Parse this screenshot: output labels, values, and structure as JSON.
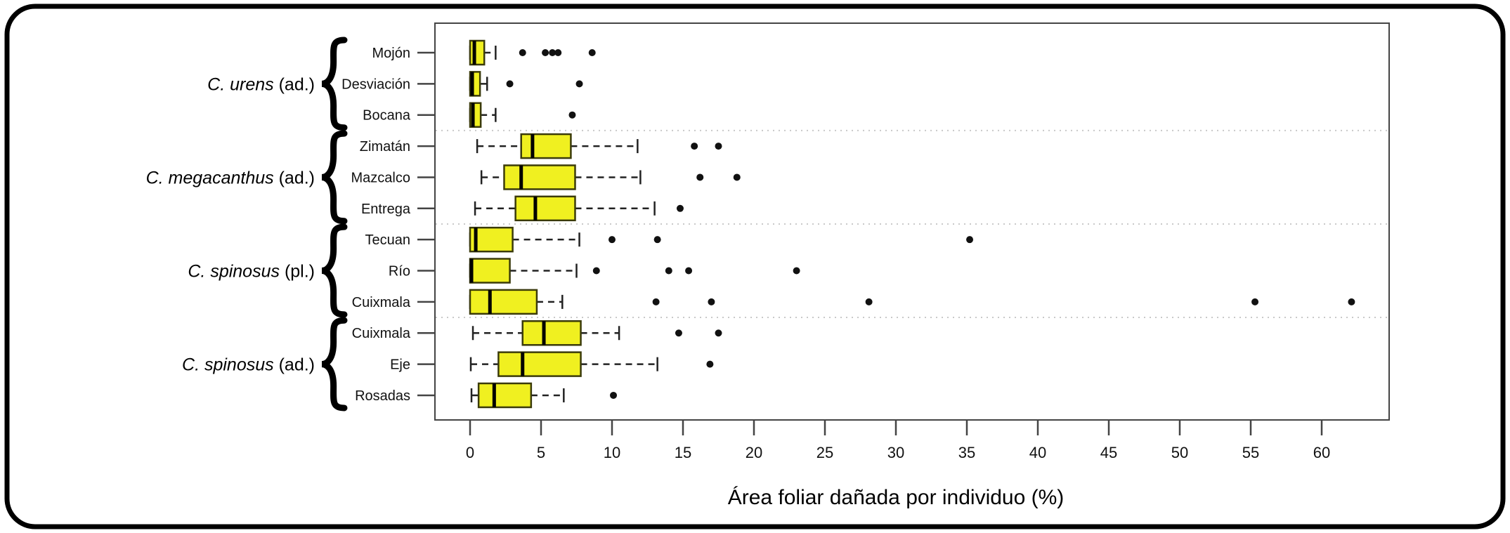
{
  "figure": {
    "xlabel": "Área foliar dañada por individuo (%)",
    "background": "#ffffff",
    "frame_color": "#000000"
  },
  "chart_data": {
    "type": "boxplot",
    "orientation": "horizontal",
    "title": "",
    "xlabel": "Área foliar dañada por individuo (%)",
    "ylabel": "",
    "xlim": [
      -2.5,
      64.8
    ],
    "x_ticks": [
      0,
      5,
      10,
      15,
      20,
      25,
      30,
      35,
      40,
      45,
      50,
      55,
      60
    ],
    "grid": false,
    "legend": "none",
    "box_fill": "#F0F020",
    "box_border": "#3B3B0A",
    "median_color": "#000000",
    "whisker_color": "#222222",
    "outlier_color": "#111111",
    "separator_color": "#c9c9c9",
    "axis_color": "#444444",
    "groups": [
      {
        "name": "C. urens (ad.)",
        "name_italic": "C. urens",
        "name_rest": " (ad.)",
        "sites": [
          {
            "label": "Mojón",
            "whisker_low": 0,
            "q1": 0,
            "median": 0.3,
            "q3": 1.0,
            "whisker_high": 1.8,
            "outliers": [
              3.7,
              5.3,
              5.8,
              6.2,
              8.6
            ]
          },
          {
            "label": "Desviación",
            "whisker_low": 0,
            "q1": 0,
            "median": 0.15,
            "q3": 0.7,
            "whisker_high": 1.2,
            "outliers": [
              2.8,
              7.7
            ]
          },
          {
            "label": "Bocana",
            "whisker_low": 0,
            "q1": 0,
            "median": 0.2,
            "q3": 0.75,
            "whisker_high": 1.8,
            "outliers": [
              7.2
            ]
          }
        ]
      },
      {
        "name": "C. megacanthus (ad.)",
        "name_italic": "C. megacanthus",
        "name_rest": " (ad.)",
        "sites": [
          {
            "label": "Zimatán",
            "whisker_low": 0.5,
            "q1": 3.6,
            "median": 4.4,
            "q3": 7.1,
            "whisker_high": 11.8,
            "outliers": [
              15.8,
              17.5
            ]
          },
          {
            "label": "Mazcalco",
            "whisker_low": 0.8,
            "q1": 2.4,
            "median": 3.6,
            "q3": 7.4,
            "whisker_high": 12.0,
            "outliers": [
              16.2,
              18.8
            ]
          },
          {
            "label": "Entrega",
            "whisker_low": 0.35,
            "q1": 3.2,
            "median": 4.6,
            "q3": 7.4,
            "whisker_high": 13.0,
            "outliers": [
              14.8
            ]
          }
        ]
      },
      {
        "name": "C. spinosus (pl.)",
        "name_italic": "C. spinosus",
        "name_rest": " (pl.)",
        "sites": [
          {
            "label": "Tecuan",
            "whisker_low": 0,
            "q1": 0,
            "median": 0.4,
            "q3": 3.0,
            "whisker_high": 7.7,
            "outliers": [
              10.0,
              13.2,
              35.2
            ]
          },
          {
            "label": "Río",
            "whisker_low": 0,
            "q1": 0,
            "median": 0.1,
            "q3": 2.8,
            "whisker_high": 7.5,
            "outliers": [
              8.9,
              14.0,
              15.4,
              23.0
            ]
          },
          {
            "label": "Cuixmala",
            "whisker_low": 0,
            "q1": 0,
            "median": 1.4,
            "q3": 4.7,
            "whisker_high": 6.5,
            "outliers": [
              13.1,
              17.0,
              28.1,
              55.3,
              62.1
            ]
          }
        ]
      },
      {
        "name": "C. spinosus (ad.)",
        "name_italic": "C. spinosus",
        "name_rest": " (ad.)",
        "sites": [
          {
            "label": "Cuixmala",
            "whisker_low": 0.2,
            "q1": 3.7,
            "median": 5.2,
            "q3": 7.8,
            "whisker_high": 10.5,
            "outliers": [
              14.7,
              17.5
            ]
          },
          {
            "label": "Eje",
            "whisker_low": 0.05,
            "q1": 2.0,
            "median": 3.7,
            "q3": 7.8,
            "whisker_high": 13.2,
            "outliers": [
              16.9
            ]
          },
          {
            "label": "Rosadas",
            "whisker_low": 0.1,
            "q1": 0.6,
            "median": 1.7,
            "q3": 4.3,
            "whisker_high": 6.6,
            "outliers": [
              10.1
            ]
          }
        ]
      }
    ]
  }
}
